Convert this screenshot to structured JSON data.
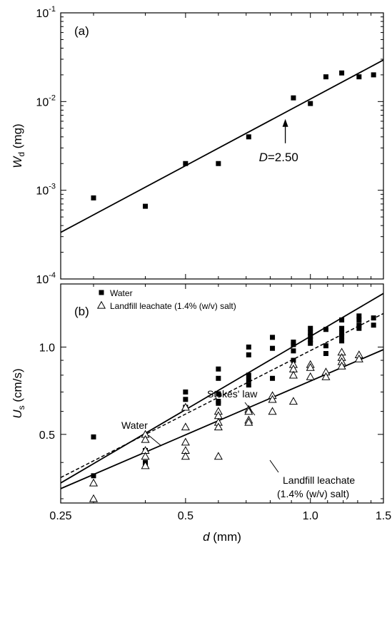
{
  "chart_data": [
    {
      "type": "scatter",
      "panel_label": "(a)",
      "xscale": "log",
      "yscale": "log",
      "xlim": [
        0.25,
        1.5
      ],
      "ylim": [
        0.0001,
        0.1
      ],
      "ylabel": {
        "main": "W",
        "sub": "d",
        "unit": " (mg)"
      },
      "yticks": [
        {
          "value": 0.1,
          "base": "10",
          "exp": "-1"
        },
        {
          "value": 0.01,
          "base": "10",
          "exp": "-2"
        },
        {
          "value": 0.001,
          "base": "10",
          "exp": "-3"
        },
        {
          "value": 0.0001,
          "base": "10",
          "exp": "-4"
        }
      ],
      "series": [
        {
          "marker": "filled-square",
          "points": [
            [
              0.3,
              0.00082
            ],
            [
              0.4,
              0.00066
            ],
            [
              0.5,
              0.002
            ],
            [
              0.6,
              0.002
            ],
            [
              0.71,
              0.004
            ],
            [
              0.91,
              0.011
            ],
            [
              1.0,
              0.0095
            ],
            [
              1.09,
              0.019
            ],
            [
              1.19,
              0.021
            ],
            [
              1.31,
              0.019
            ],
            [
              1.42,
              0.02
            ]
          ]
        }
      ],
      "fit_lines": [
        {
          "style": "solid",
          "from": [
            0.25,
            0.000335
          ],
          "to": [
            1.5,
            0.0294
          ]
        }
      ],
      "annotation": {
        "prefix": "D",
        "suffix": "=2.50",
        "at": [
          0.87,
          0.0066
        ]
      }
    },
    {
      "type": "scatter",
      "panel_label": "(b)",
      "xscale": "log",
      "yscale": "log",
      "xlim": [
        0.25,
        1.5
      ],
      "ylim": [
        0.29,
        1.65
      ],
      "xlabel": {
        "main": "d",
        "unit": " (mm)"
      },
      "ylabel": {
        "main": "U",
        "sub": "s",
        "unit": " (cm/s)"
      },
      "xticks": [
        {
          "value": 0.25,
          "label": "0.25"
        },
        {
          "value": 0.5,
          "label": "0.5"
        },
        {
          "value": 1.0,
          "label": "1.0"
        },
        {
          "value": 1.5,
          "label": "1.5"
        }
      ],
      "yticks": [
        {
          "value": 0.5,
          "label": "0.5"
        },
        {
          "value": 1.0,
          "label": "1.0"
        }
      ],
      "legend": [
        {
          "marker": "filled-square",
          "label": "Water"
        },
        {
          "marker": "open-triangle",
          "label": "Landfill leachate (1.4% (w/v) salt)"
        }
      ],
      "series": [
        {
          "name": "Water",
          "marker": "filled-square",
          "points": [
            [
              0.3,
              0.49
            ],
            [
              0.3,
              0.36
            ],
            [
              0.4,
              0.44
            ],
            [
              0.4,
              0.4
            ],
            [
              0.4,
              0.39
            ],
            [
              0.5,
              0.7
            ],
            [
              0.5,
              0.66
            ],
            [
              0.5,
              0.62
            ],
            [
              0.6,
              0.84
            ],
            [
              0.6,
              0.78
            ],
            [
              0.6,
              0.69
            ],
            [
              0.6,
              0.65
            ],
            [
              0.6,
              0.64
            ],
            [
              0.71,
              1.0
            ],
            [
              0.71,
              0.94
            ],
            [
              0.71,
              0.8
            ],
            [
              0.71,
              0.77
            ],
            [
              0.71,
              0.74
            ],
            [
              0.81,
              1.08
            ],
            [
              0.81,
              0.99
            ],
            [
              0.81,
              0.78
            ],
            [
              0.91,
              1.04
            ],
            [
              0.91,
              1.02
            ],
            [
              0.91,
              0.97
            ],
            [
              0.91,
              0.9
            ],
            [
              1.0,
              1.16
            ],
            [
              1.0,
              1.12
            ],
            [
              1.0,
              1.09
            ],
            [
              1.0,
              1.06
            ],
            [
              1.0,
              1.03
            ],
            [
              1.09,
              1.15
            ],
            [
              1.09,
              1.01
            ],
            [
              1.09,
              0.95
            ],
            [
              1.19,
              1.24
            ],
            [
              1.19,
              1.16
            ],
            [
              1.19,
              1.12
            ],
            [
              1.19,
              1.09
            ],
            [
              1.19,
              1.05
            ],
            [
              1.31,
              1.28
            ],
            [
              1.31,
              1.24
            ],
            [
              1.31,
              1.19
            ],
            [
              1.31,
              1.16
            ],
            [
              1.42,
              1.26
            ],
            [
              1.42,
              1.19
            ]
          ]
        },
        {
          "name": "Landfill leachate (1.4% (w/v) salt)",
          "marker": "open-triangle",
          "points": [
            [
              0.3,
              0.34
            ],
            [
              0.3,
              0.3
            ],
            [
              0.4,
              0.5
            ],
            [
              0.4,
              0.48
            ],
            [
              0.4,
              0.44
            ],
            [
              0.4,
              0.42
            ],
            [
              0.4,
              0.39
            ],
            [
              0.5,
              0.62
            ],
            [
              0.5,
              0.53
            ],
            [
              0.5,
              0.47
            ],
            [
              0.5,
              0.44
            ],
            [
              0.5,
              0.42
            ],
            [
              0.6,
              0.6
            ],
            [
              0.6,
              0.58
            ],
            [
              0.6,
              0.55
            ],
            [
              0.6,
              0.53
            ],
            [
              0.6,
              0.42
            ],
            [
              0.71,
              0.61
            ],
            [
              0.71,
              0.6
            ],
            [
              0.71,
              0.56
            ],
            [
              0.71,
              0.55
            ],
            [
              0.81,
              0.68
            ],
            [
              0.81,
              0.66
            ],
            [
              0.81,
              0.6
            ],
            [
              0.91,
              0.87
            ],
            [
              0.91,
              0.84
            ],
            [
              0.91,
              0.8
            ],
            [
              0.91,
              0.65
            ],
            [
              1.0,
              0.87
            ],
            [
              1.0,
              0.85
            ],
            [
              1.0,
              0.79
            ],
            [
              1.09,
              0.82
            ],
            [
              1.09,
              0.79
            ],
            [
              1.19,
              0.96
            ],
            [
              1.19,
              0.92
            ],
            [
              1.19,
              0.89
            ],
            [
              1.19,
              0.86
            ],
            [
              1.31,
              0.94
            ],
            [
              1.31,
              0.91
            ]
          ]
        }
      ],
      "fit_lines": [
        {
          "style": "solid",
          "label": "Water",
          "from": [
            0.25,
            0.34
          ],
          "to": [
            1.5,
            1.53
          ]
        },
        {
          "style": "dashed",
          "label": "Stokes' law",
          "from": [
            0.25,
            0.355
          ],
          "to": [
            1.5,
            1.305
          ]
        },
        {
          "style": "solid",
          "label": "Landfill leachate (1.4% (w/v) salt)",
          "from": [
            0.25,
            0.325
          ],
          "to": [
            1.5,
            0.98
          ]
        }
      ],
      "line_labels": [
        {
          "text": "Water",
          "line": 0
        },
        {
          "text": "Stokes' law",
          "line": 1
        },
        {
          "text": "Landfill leachate",
          "line": 2
        },
        {
          "text": "(1.4% (w/v) salt)",
          "line": 2
        }
      ]
    }
  ]
}
